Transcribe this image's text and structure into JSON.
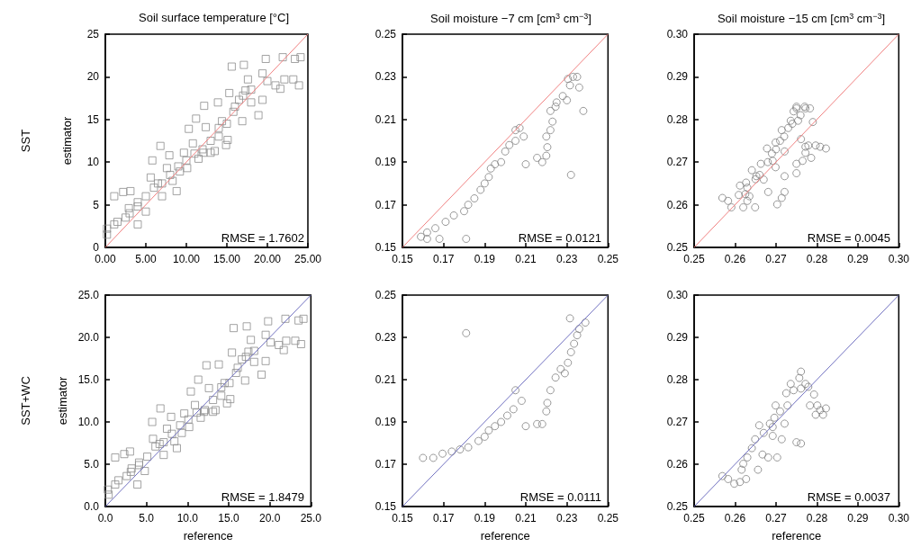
{
  "chart_data": [
    {
      "type": "scatter",
      "title": "Soil surface temperature [°C]",
      "ylabel": "estimator",
      "annotations": [
        "SST",
        "RMSE = 1.7602"
      ],
      "xlim": [
        0,
        25
      ],
      "ylim": [
        0,
        25
      ],
      "xticks": [
        {
          "value": 0,
          "label": "0.00"
        },
        {
          "value": 5,
          "label": "5.00"
        },
        {
          "value": 10,
          "label": "10.00"
        },
        {
          "value": 15,
          "label": "15.00"
        },
        {
          "value": 20,
          "label": "20.00"
        },
        {
          "value": 25,
          "label": "25.00"
        }
      ],
      "yticks": [
        0,
        5,
        10,
        15,
        20,
        25
      ],
      "series": [
        {
          "marker": "square",
          "color": "#8c8c8c",
          "x": [
            0.2,
            0.2,
            1.1,
            1.1,
            2.2,
            3.1,
            2.9,
            4.0,
            4.0,
            5.0,
            5.0,
            5.8,
            5.6,
            6.5,
            6.8,
            7.0,
            7.6,
            7.9,
            8.3,
            8.8,
            9.2,
            9.7,
            10.1,
            10.3,
            10.8,
            11.2,
            11.5,
            12.1,
            12.2,
            12.4,
            13.0,
            13.5,
            13.9,
            14.0,
            14.4,
            14.9,
            15.1,
            15.3,
            15.6,
            15.8,
            16.5,
            16.9,
            17.1,
            17.3,
            17.6,
            18.0,
            18.9,
            19.4,
            19.4,
            19.8,
            20.0,
            21.0,
            21.6,
            22.1,
            21.9,
            23.2,
            23.9,
            24.1,
            23.4,
            8.0,
            10.0,
            12.0,
            11.0,
            9.0,
            7.0,
            6.0,
            4.0,
            3.0,
            13.0,
            14.0,
            15.0,
            16.0,
            17.0,
            18.0,
            1.5,
            2.5
          ],
          "values": [
            2.2,
            1.5,
            2.7,
            6.0,
            6.5,
            6.6,
            4.6,
            5.3,
            2.7,
            6.0,
            4.2,
            10.2,
            8.2,
            7.5,
            11.9,
            6.0,
            9.3,
            10.8,
            7.8,
            6.6,
            8.9,
            11.1,
            9.3,
            13.9,
            12.2,
            15.1,
            10.4,
            11.1,
            16.6,
            14.1,
            11.1,
            11.3,
            17.0,
            13.0,
            14.8,
            12.0,
            12.6,
            18.1,
            21.2,
            15.9,
            17.3,
            14.8,
            21.4,
            18.4,
            19.7,
            17.0,
            15.5,
            17.3,
            20.4,
            22.1,
            19.5,
            19.0,
            18.6,
            19.7,
            22.3,
            19.7,
            19.0,
            22.3,
            22.1,
            8.5,
            10.2,
            11.5,
            11.0,
            9.5,
            7.5,
            7.0,
            4.8,
            4.0,
            12.5,
            14.0,
            14.5,
            16.5,
            17.8,
            18.5,
            3.0,
            3.5
          ]
        },
        {
          "type": "line",
          "color": "#f08080",
          "x": [
            0,
            25
          ],
          "values": [
            0,
            25
          ]
        }
      ]
    },
    {
      "type": "scatter",
      "title": "Soil moisture −7 cm [cm$^{3}$ cm$^{−3}$]",
      "annotations": [
        "RMSE = 0.0121"
      ],
      "xlim": [
        0.15,
        0.25
      ],
      "ylim": [
        0.15,
        0.25
      ],
      "xticks": [
        0.15,
        0.17,
        0.19,
        0.21,
        0.23,
        0.25
      ],
      "yticks": [
        0.15,
        0.17,
        0.19,
        0.21,
        0.23,
        0.25
      ],
      "series": [
        {
          "marker": "circle",
          "color": "#808080",
          "x": [
            0.159,
            0.162,
            0.166,
            0.171,
            0.175,
            0.18,
            0.182,
            0.185,
            0.188,
            0.19,
            0.192,
            0.193,
            0.195,
            0.198,
            0.2,
            0.202,
            0.205,
            0.205,
            0.207,
            0.209,
            0.21,
            0.181,
            0.168,
            0.162,
            0.2155,
            0.218,
            0.22,
            0.2205,
            0.22,
            0.222,
            0.223,
            0.222,
            0.2245,
            0.225,
            0.228,
            0.23,
            0.2305,
            0.233,
            0.235,
            0.236,
            0.238,
            0.232,
            0.2315
          ],
          "values": [
            0.155,
            0.157,
            0.159,
            0.162,
            0.165,
            0.167,
            0.17,
            0.173,
            0.177,
            0.18,
            0.183,
            0.187,
            0.189,
            0.19,
            0.195,
            0.198,
            0.2,
            0.205,
            0.206,
            0.202,
            0.189,
            0.154,
            0.154,
            0.154,
            0.192,
            0.19,
            0.193,
            0.197,
            0.202,
            0.205,
            0.209,
            0.214,
            0.216,
            0.218,
            0.221,
            0.219,
            0.229,
            0.23,
            0.23,
            0.225,
            0.214,
            0.184,
            0.226
          ]
        },
        {
          "type": "line",
          "color": "#f08080",
          "x": [
            0.15,
            0.25
          ],
          "values": [
            0.15,
            0.25
          ]
        }
      ]
    },
    {
      "type": "scatter",
      "title": "Soil moisture −15 cm [cm$^{3}$ cm$^{−3}$]",
      "annotations": [
        "RMSE = 0.0045"
      ],
      "xlim": [
        0.25,
        0.3
      ],
      "ylim": [
        0.25,
        0.3
      ],
      "xticks": [
        0.25,
        0.26,
        0.27,
        0.28,
        0.29,
        {
          "value": 0.3,
          "label": "0.30"
        }
      ],
      "yticks": [
        0.25,
        0.26,
        0.27,
        0.28,
        0.29,
        {
          "value": 0.3,
          "label": "0.30"
        }
      ],
      "series": [
        {
          "marker": "circle",
          "color": "#808080",
          "x": [
            0.2569,
            0.2583,
            0.2591,
            0.2609,
            0.2612,
            0.262,
            0.263,
            0.2627,
            0.2641,
            0.2649,
            0.2652,
            0.2663,
            0.267,
            0.2681,
            0.2678,
            0.2692,
            0.2699,
            0.2699,
            0.2703,
            0.2714,
            0.2721,
            0.2721,
            0.2721,
            0.2714,
            0.2736,
            0.2743,
            0.275,
            0.2754,
            0.275,
            0.275,
            0.2761,
            0.2772,
            0.2783,
            0.279,
            0.2772,
            0.2772,
            0.2779,
            0.2797,
            0.2808,
            0.2822,
            0.2786,
            0.2765,
            0.2625,
            0.263,
            0.2635,
            0.265,
            0.266,
            0.268,
            0.269,
            0.27,
            0.271,
            0.272,
            0.273,
            0.274,
            0.275,
            0.276,
            0.277
          ],
          "values": [
            0.2616,
            0.2609,
            0.2594,
            0.2623,
            0.2645,
            0.2594,
            0.2609,
            0.2652,
            0.2681,
            0.2594,
            0.2667,
            0.2696,
            0.2659,
            0.263,
            0.2732,
            0.2703,
            0.2746,
            0.2688,
            0.2601,
            0.2775,
            0.2725,
            0.2667,
            0.263,
            0.2616,
            0.2797,
            0.2819,
            0.2826,
            0.2797,
            0.2696,
            0.2674,
            0.2754,
            0.2826,
            0.2826,
            0.2794,
            0.2736,
            0.2722,
            0.2739,
            0.2739,
            0.2736,
            0.2732,
            0.271,
            0.2703,
            0.2625,
            0.264,
            0.262,
            0.266,
            0.267,
            0.27,
            0.272,
            0.273,
            0.275,
            0.276,
            0.278,
            0.279,
            0.283,
            0.281,
            0.283
          ]
        },
        {
          "type": "line",
          "color": "#f08080",
          "x": [
            0.25,
            0.3
          ],
          "values": [
            0.25,
            0.3
          ]
        }
      ]
    },
    {
      "type": "scatter",
      "xlabel": "reference",
      "ylabel": "estimator",
      "annotations": [
        "SST+WC",
        "RMSE = 1.8479"
      ],
      "xlim": [
        0,
        25
      ],
      "ylim": [
        0,
        25
      ],
      "xticks": [
        {
          "value": 0,
          "label": "0.0"
        },
        {
          "value": 5,
          "label": "5.0"
        },
        {
          "value": 10,
          "label": "10.0"
        },
        {
          "value": 15,
          "label": "15.0"
        },
        {
          "value": 20,
          "label": "20.0"
        },
        {
          "value": 25,
          "label": "25.0"
        }
      ],
      "yticks": [
        {
          "value": 0,
          "label": "0.0"
        },
        {
          "value": 5,
          "label": "5.0"
        },
        {
          "value": 10,
          "label": "10.0"
        },
        {
          "value": 15,
          "label": "15.0"
        },
        {
          "value": 20,
          "label": "20.0"
        },
        {
          "value": 25,
          "label": "25.0"
        }
      ],
      "series": [
        {
          "marker": "square",
          "color": "#8c8c8c",
          "x": [
            0.3,
            0.4,
            1.2,
            1.2,
            2.3,
            3.0,
            3.2,
            4.1,
            3.9,
            5.1,
            4.8,
            5.7,
            5.8,
            6.6,
            6.7,
            7.1,
            7.5,
            8.0,
            8.4,
            8.7,
            9.3,
            9.6,
            10.2,
            10.4,
            10.9,
            11.3,
            11.6,
            12.0,
            12.3,
            12.6,
            13.1,
            13.4,
            13.8,
            14.1,
            14.5,
            14.8,
            15.2,
            15.4,
            15.6,
            15.9,
            16.6,
            17.0,
            17.2,
            17.4,
            17.7,
            18.1,
            19.0,
            19.5,
            19.5,
            19.8,
            20.1,
            21.1,
            21.7,
            22.0,
            21.9,
            23.1,
            23.8,
            24.1,
            23.5,
            8.1,
            10.1,
            12.1,
            11.1,
            9.1,
            7.1,
            6.1,
            4.1,
            3.1,
            13.1,
            14.1,
            15.1,
            16.1,
            17.1,
            18.1,
            1.6,
            2.6
          ],
          "values": [
            2.0,
            1.4,
            2.6,
            5.8,
            6.2,
            6.5,
            4.5,
            5.2,
            2.6,
            5.9,
            4.2,
            10.0,
            8.0,
            7.4,
            11.6,
            6.1,
            9.2,
            10.6,
            7.7,
            6.9,
            8.7,
            11.0,
            9.4,
            13.6,
            12.0,
            15.0,
            10.5,
            11.2,
            16.7,
            14.0,
            11.2,
            11.4,
            16.8,
            13.1,
            14.6,
            12.2,
            12.7,
            18.2,
            21.1,
            15.8,
            17.4,
            14.9,
            21.3,
            18.3,
            19.7,
            17.1,
            15.6,
            17.2,
            20.3,
            21.9,
            19.4,
            19.1,
            18.5,
            19.6,
            22.2,
            19.6,
            19.2,
            22.2,
            22.0,
            8.6,
            10.3,
            11.4,
            11.1,
            9.6,
            7.6,
            7.1,
            4.9,
            4.1,
            12.6,
            14.1,
            14.6,
            16.4,
            17.7,
            18.4,
            3.1,
            3.6
          ]
        },
        {
          "type": "line",
          "color": "#7070c0",
          "x": [
            0,
            25
          ],
          "values": [
            0,
            25
          ]
        }
      ]
    },
    {
      "type": "scatter",
      "xlabel": "reference",
      "annotations": [
        "RMSE = 0.0111"
      ],
      "xlim": [
        0.15,
        0.25
      ],
      "ylim": [
        0.15,
        0.25
      ],
      "xticks": [
        0.15,
        0.17,
        0.19,
        0.21,
        0.23,
        0.25
      ],
      "yticks": [
        0.15,
        0.17,
        0.19,
        0.21,
        0.23,
        0.25
      ],
      "series": [
        {
          "marker": "circle",
          "color": "#808080",
          "x": [
            0.16,
            0.165,
            0.1695,
            0.174,
            0.178,
            0.182,
            0.187,
            0.19,
            0.192,
            0.195,
            0.198,
            0.201,
            0.204,
            0.205,
            0.208,
            0.21,
            0.181,
            0.2155,
            0.218,
            0.22,
            0.2205,
            0.222,
            0.2245,
            0.227,
            0.229,
            0.2305,
            0.232,
            0.2335,
            0.235,
            0.236,
            0.239,
            0.2315
          ],
          "values": [
            0.173,
            0.173,
            0.175,
            0.176,
            0.177,
            0.178,
            0.181,
            0.183,
            0.186,
            0.188,
            0.19,
            0.193,
            0.196,
            0.205,
            0.2,
            0.188,
            0.232,
            0.189,
            0.189,
            0.195,
            0.199,
            0.205,
            0.211,
            0.215,
            0.213,
            0.218,
            0.223,
            0.227,
            0.231,
            0.234,
            0.237,
            0.239
          ]
        },
        {
          "type": "line",
          "color": "#7070c0",
          "x": [
            0.15,
            0.25
          ],
          "values": [
            0.15,
            0.25
          ]
        }
      ]
    },
    {
      "type": "scatter",
      "xlabel": "reference",
      "annotations": [
        "RMSE = 0.0037"
      ],
      "xlim": [
        0.25,
        0.3
      ],
      "ylim": [
        0.25,
        0.3
      ],
      "xticks": [
        0.25,
        0.26,
        0.27,
        0.28,
        0.29,
        {
          "value": 0.3,
          "label": "0.30"
        }
      ],
      "yticks": [
        0.25,
        0.26,
        0.27,
        0.28,
        0.29,
        {
          "value": 0.3,
          "label": "0.30"
        }
      ],
      "series": [
        {
          "marker": "circle",
          "color": "#808080",
          "x": [
            0.2569,
            0.2583,
            0.2598,
            0.2612,
            0.2616,
            0.262,
            0.2627,
            0.263,
            0.2641,
            0.2649,
            0.2656,
            0.2659,
            0.2667,
            0.267,
            0.2681,
            0.2685,
            0.2692,
            0.2696,
            0.2699,
            0.2703,
            0.271,
            0.2714,
            0.2721,
            0.2725,
            0.2728,
            0.2736,
            0.2743,
            0.275,
            0.2761,
            0.2757,
            0.2761,
            0.2772,
            0.2779,
            0.2783,
            0.2793,
            0.2801,
            0.2797,
            0.2808,
            0.2815,
            0.2822,
            0.2761,
            0.2692
          ],
          "values": [
            0.2572,
            0.2565,
            0.2554,
            0.2558,
            0.2587,
            0.2601,
            0.2565,
            0.2616,
            0.2638,
            0.2659,
            0.2587,
            0.2692,
            0.2623,
            0.2674,
            0.2616,
            0.2696,
            0.2667,
            0.271,
            0.2739,
            0.2616,
            0.2725,
            0.2659,
            0.2696,
            0.2768,
            0.2739,
            0.279,
            0.2775,
            0.2652,
            0.2649,
            0.2804,
            0.2779,
            0.279,
            0.2783,
            0.2739,
            0.2765,
            0.2739,
            0.2717,
            0.2728,
            0.2717,
            0.2732,
            0.2819,
            0.2688
          ]
        },
        {
          "type": "line",
          "color": "#7070c0",
          "x": [
            0.25,
            0.3
          ],
          "values": [
            0.25,
            0.3
          ]
        }
      ]
    }
  ]
}
